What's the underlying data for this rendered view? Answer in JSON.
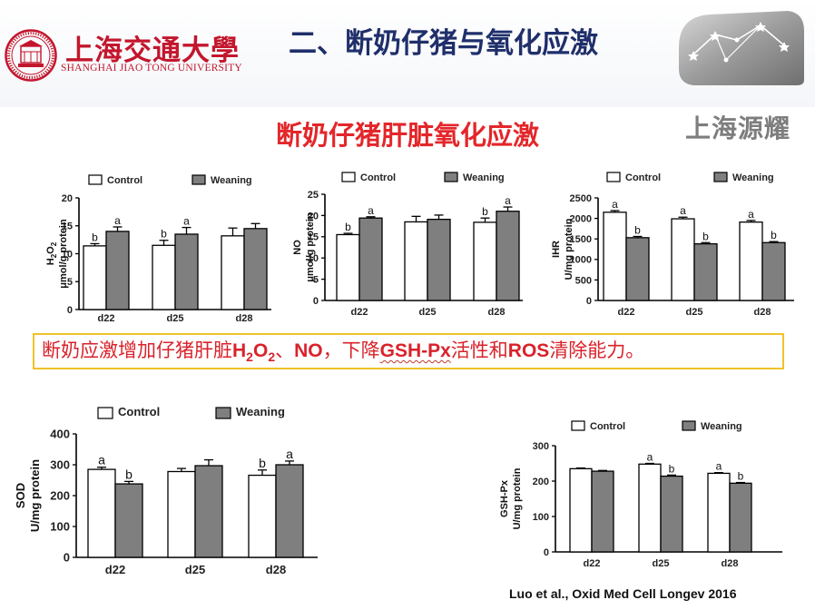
{
  "header": {
    "university_cn": "上海交通大學",
    "university_en": "SHANGHAI JIAO TONG UNIVERSITY",
    "slide_title": "二、断奶仔猪与氧化应激",
    "company_name": "上海源耀"
  },
  "subtitle": "断奶仔猪肝脏氧化应激",
  "callout": {
    "prefix": "断奶应激增加仔猪肝脏",
    "h2o2_h": "H",
    "h2o2_2a": "2",
    "h2o2_o": "O",
    "h2o2_2b": "2",
    "sep": "、",
    "no": "NO",
    "mid": "，下降",
    "gsh": "GSH-Px",
    "mid2": "活性和",
    "ros": "ROS",
    "suffix": "清除能力。"
  },
  "citation": "Luo et al., Oxid Med Cell Longev 2016",
  "colors": {
    "control": "#ffffff",
    "weaning": "#7f7f7f",
    "title_blue": "#1f2f6b",
    "accent_red": "#e3262a"
  },
  "chart_data": [
    {
      "id": "h2o2",
      "type": "bar",
      "ylabel_line1": "H2O2",
      "ylabel_line2": "μmol/g protein",
      "categories": [
        "d22",
        "d25",
        "d28"
      ],
      "ylim": [
        0,
        20
      ],
      "yticks": [
        0,
        5,
        10,
        15,
        20
      ],
      "legend": [
        "Control",
        "Weaning"
      ],
      "series": [
        {
          "name": "Control",
          "values": [
            11.4,
            11.5,
            13.2
          ],
          "err": [
            0.4,
            0.9,
            1.4
          ],
          "labels": [
            "b",
            "b",
            ""
          ]
        },
        {
          "name": "Weaning",
          "values": [
            14.0,
            13.5,
            14.5
          ],
          "err": [
            0.8,
            1.2,
            0.9
          ],
          "labels": [
            "a",
            "a",
            ""
          ]
        }
      ]
    },
    {
      "id": "no",
      "type": "bar",
      "ylabel_line1": "NO",
      "ylabel_line2": "μmol/g protein",
      "categories": [
        "d22",
        "d25",
        "d28"
      ],
      "ylim": [
        0,
        25
      ],
      "yticks": [
        0,
        5,
        10,
        15,
        20,
        25
      ],
      "legend": [
        "Control",
        "Weaning"
      ],
      "series": [
        {
          "name": "Control",
          "values": [
            15.5,
            18.5,
            18.4
          ],
          "err": [
            0.3,
            1.3,
            1.0
          ],
          "labels": [
            "b",
            "",
            "b"
          ]
        },
        {
          "name": "Weaning",
          "values": [
            19.4,
            19.1,
            21.0
          ],
          "err": [
            0.3,
            1.0,
            1.0
          ],
          "labels": [
            "a",
            "",
            "a"
          ]
        }
      ]
    },
    {
      "id": "ihr",
      "type": "bar",
      "ylabel_line1": "IHR",
      "ylabel_line2": "U/mg protein",
      "categories": [
        "d22",
        "d25",
        "d28"
      ],
      "ylim": [
        0,
        2500
      ],
      "yticks": [
        0,
        500,
        1000,
        1500,
        2000,
        2500
      ],
      "legend": [
        "Control",
        "Weaning"
      ],
      "series": [
        {
          "name": "Control",
          "values": [
            2150,
            1990,
            1910
          ],
          "err": [
            40,
            40,
            40
          ],
          "labels": [
            "a",
            "a",
            "a"
          ]
        },
        {
          "name": "Weaning",
          "values": [
            1530,
            1380,
            1410
          ],
          "err": [
            30,
            30,
            25
          ],
          "labels": [
            "b",
            "b",
            "b"
          ]
        }
      ]
    },
    {
      "id": "sod",
      "type": "bar",
      "ylabel_line1": "SOD",
      "ylabel_line2": "U/mg protein",
      "categories": [
        "d22",
        "d25",
        "d28"
      ],
      "ylim": [
        0,
        400
      ],
      "yticks": [
        0,
        100,
        200,
        300,
        400
      ],
      "legend": [
        "Control",
        "Weaning"
      ],
      "series": [
        {
          "name": "Control",
          "values": [
            285,
            278,
            266
          ],
          "err": [
            7,
            10,
            17
          ],
          "labels": [
            "a",
            "",
            "b"
          ]
        },
        {
          "name": "Weaning",
          "values": [
            238,
            297,
            300
          ],
          "err": [
            8,
            19,
            12
          ],
          "labels": [
            "b",
            "",
            "a"
          ]
        }
      ]
    },
    {
      "id": "gshpx",
      "type": "bar",
      "ylabel_line1": "GSH-Px",
      "ylabel_line2": "U/mg protein",
      "categories": [
        "d22",
        "d25",
        "d28"
      ],
      "ylim": [
        0,
        300
      ],
      "yticks": [
        0,
        100,
        200,
        300
      ],
      "legend": [
        "Control",
        "Weaning"
      ],
      "series": [
        {
          "name": "Control",
          "values": [
            235,
            248,
            222
          ],
          "err": [
            2,
            2,
            2
          ],
          "labels": [
            "",
            "a",
            "a"
          ]
        },
        {
          "name": "Weaning",
          "values": [
            228,
            214,
            194
          ],
          "err": [
            2,
            3,
            2
          ],
          "labels": [
            "",
            "b",
            "b"
          ]
        }
      ]
    }
  ]
}
